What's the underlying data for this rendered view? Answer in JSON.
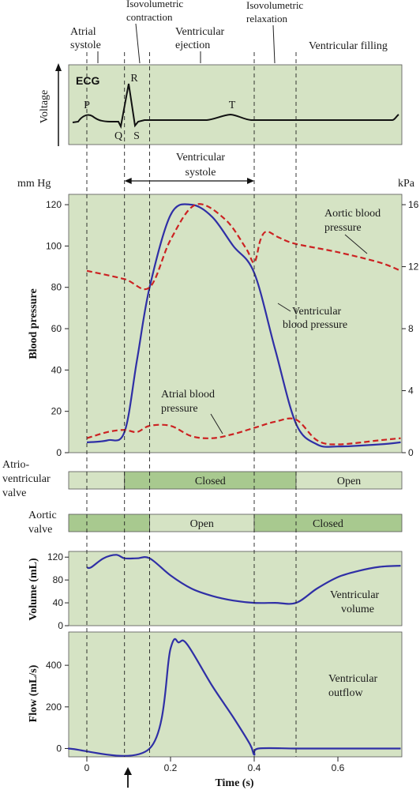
{
  "colors": {
    "panel": "#d5e3c4",
    "bar_light": "#d5e3c4",
    "bar_dark": "#a8c98f",
    "blue": "#2f2fa6",
    "red": "#cc2222"
  },
  "phases": {
    "atrial_systole": [
      "Atrial",
      "systole"
    ],
    "iso_contraction": [
      "Isovolumetric",
      "contraction"
    ],
    "ventricular_ejection": [
      "Ventricular",
      "ejection"
    ],
    "iso_relaxation": [
      "Isovolumetric",
      "relaxation"
    ],
    "ventricular_filling": "Ventricular filling",
    "ventricular_systole": [
      "Ventricular",
      "systole"
    ]
  },
  "phase_boundaries_s": [
    0,
    0.09,
    0.15,
    0.4,
    0.5
  ],
  "ecg": {
    "tag": "ECG",
    "ylabel": "Voltage",
    "waves": [
      "P",
      "Q",
      "R",
      "S",
      "T"
    ]
  },
  "valves": {
    "av_label": [
      "Atrio-",
      "ventricular",
      "valve"
    ],
    "aortic_label": [
      "Aortic",
      "valve"
    ],
    "closed": "Closed",
    "open": "Open"
  },
  "chart_data": [
    {
      "type": "line",
      "name": "pressure",
      "ylabel": "Blood pressure",
      "left_unit": "mm Hg",
      "right_unit": "kPa",
      "ylim": [
        0,
        125
      ],
      "yticks": [
        0,
        20,
        40,
        60,
        80,
        100,
        120
      ],
      "right_ticks": [
        0,
        4,
        8,
        12,
        16
      ],
      "series": [
        {
          "name": [
            "Aortic blood",
            "pressure"
          ],
          "style": "dashed-red",
          "x": [
            0,
            0.09,
            0.15,
            0.2,
            0.26,
            0.33,
            0.38,
            0.4,
            0.415,
            0.43,
            0.46,
            0.5,
            0.6,
            0.7,
            0.75
          ],
          "y": [
            88,
            84,
            80,
            103,
            120,
            113,
            99,
            92,
            103,
            107,
            104,
            101,
            97,
            92,
            88
          ]
        },
        {
          "name": [
            "Ventricular",
            "blood pressure"
          ],
          "style": "solid-blue",
          "x": [
            0,
            0.05,
            0.09,
            0.12,
            0.15,
            0.2,
            0.25,
            0.3,
            0.35,
            0.4,
            0.45,
            0.5,
            0.55,
            0.6,
            0.7,
            0.75
          ],
          "y": [
            5,
            6,
            10,
            45,
            80,
            115,
            120,
            114,
            100,
            87,
            50,
            14,
            4,
            3,
            4,
            5
          ]
        },
        {
          "name": [
            "Atrial blood",
            "pressure"
          ],
          "style": "dashed-red",
          "x": [
            0,
            0.05,
            0.09,
            0.12,
            0.15,
            0.2,
            0.25,
            0.3,
            0.35,
            0.4,
            0.45,
            0.5,
            0.55,
            0.6,
            0.7,
            0.75
          ],
          "y": [
            7,
            10,
            11,
            10,
            13,
            13,
            8,
            7,
            9,
            12,
            15,
            16,
            6,
            4,
            6,
            7
          ]
        }
      ]
    },
    {
      "type": "line",
      "name": "volume",
      "ylabel": "Volume (mL)",
      "ylim": [
        0,
        130
      ],
      "yticks": [
        0,
        40,
        80,
        120
      ],
      "series": [
        {
          "name": [
            "Ventricular",
            "volume"
          ],
          "x": [
            0,
            0.01,
            0.04,
            0.07,
            0.09,
            0.12,
            0.15,
            0.2,
            0.25,
            0.3,
            0.35,
            0.4,
            0.45,
            0.5,
            0.55,
            0.6,
            0.65,
            0.7,
            0.75
          ],
          "y": [
            102,
            102,
            118,
            124,
            118,
            118,
            118,
            88,
            65,
            52,
            44,
            40,
            40,
            40,
            65,
            85,
            96,
            103,
            105
          ]
        }
      ]
    },
    {
      "type": "line",
      "name": "flow",
      "ylabel": "Flow (mL/s)",
      "ylim": [
        -40,
        560
      ],
      "yticks": [
        0,
        200,
        400
      ],
      "xlabel": "Time (s)",
      "xlim": [
        -0.045,
        0.75
      ],
      "xticks": [
        0,
        0.2,
        0.4,
        0.6
      ],
      "xtick_labels": [
        "0",
        "0.2",
        "0.4",
        "0.6"
      ],
      "series": [
        {
          "name": [
            "Ventricular",
            "outflow"
          ],
          "x": [
            -0.045,
            0.15,
            0.2,
            0.22,
            0.24,
            0.3,
            0.35,
            0.39,
            0.4,
            0.41,
            0.5,
            0.6,
            0.75
          ],
          "y": [
            0,
            0,
            480,
            510,
            500,
            300,
            150,
            20,
            -30,
            0,
            0,
            0,
            0
          ]
        }
      ]
    }
  ]
}
